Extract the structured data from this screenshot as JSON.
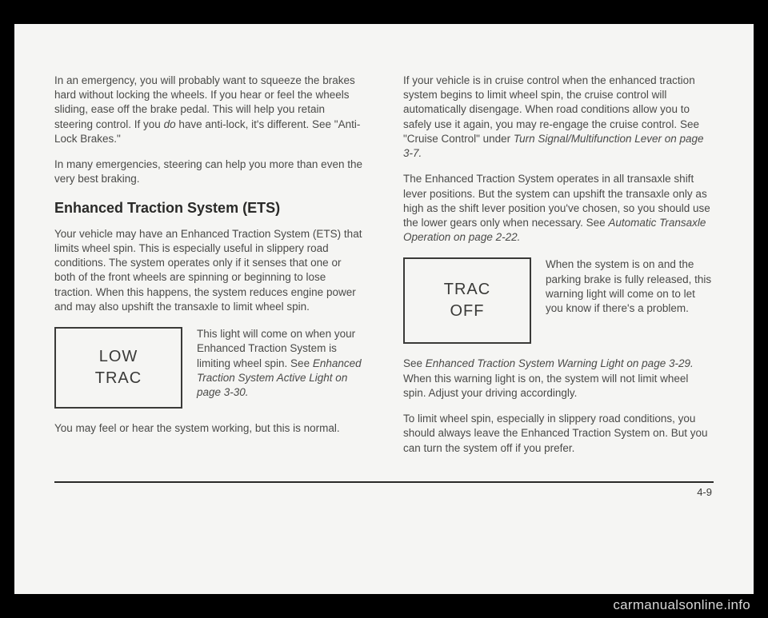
{
  "leftCol": {
    "p1": "In an emergency, you will probably want to squeeze the brakes hard without locking the wheels. If you hear or feel the wheels sliding, ease off the brake pedal. This will help you retain steering control. If you ",
    "p1_italic": "do",
    "p1_after": " have anti-lock, it's different. See \"Anti-Lock Brakes.\"",
    "p2": "In many emergencies, steering can help you more than even the very best braking.",
    "heading": "Enhanced Traction System (ETS)",
    "p3": "Your vehicle may have an Enhanced Traction System (ETS) that limits wheel spin. This is especially useful in slippery road conditions. The system operates only if it senses that one or both of the front wheels are spinning or beginning to lose traction. When this happens, the system reduces engine power and may also upshift the transaxle to limit wheel spin.",
    "box1_line1": "LOW",
    "box1_line2": "TRAC",
    "box1_text_a": "This light will come on when your Enhanced Traction System is limiting wheel spin. See ",
    "box1_text_italic": "Enhanced Traction System Active Light on page 3-30.",
    "p4": "You may feel or hear the system working, but this is normal."
  },
  "rightCol": {
    "p1_a": "If your vehicle is in cruise control when the enhanced traction system begins to limit wheel spin, the cruise control will automatically disengage. When road conditions allow you to safely use it again, you may re-engage the cruise control. See \"Cruise Control\" under ",
    "p1_italic": "Turn Signal/Multifunction Lever on page 3-7.",
    "p2_a": "The Enhanced Traction System operates in all transaxle shift lever positions. But the system can upshift the transaxle only as high as the shift lever position you've chosen, so you should use the lower gears only when necessary. See ",
    "p2_italic": "Automatic Transaxle Operation on page 2-22.",
    "box2_line1": "TRAC",
    "box2_line2": "OFF",
    "box2_text": "When the system is on and the parking brake is fully released, this warning light will come on to let you know if there's a problem.",
    "p3_a": "See ",
    "p3_italic": "Enhanced Traction System Warning Light on page 3-29.",
    "p3_b": " When this warning light is on, the system will not limit wheel spin. Adjust your driving accordingly.",
    "p4": "To limit wheel spin, especially in slippery road conditions, you should always leave the Enhanced Traction System on. But you can turn the system off if you prefer."
  },
  "pageNumber": "4-9",
  "watermark": "carmanualsonline.info"
}
